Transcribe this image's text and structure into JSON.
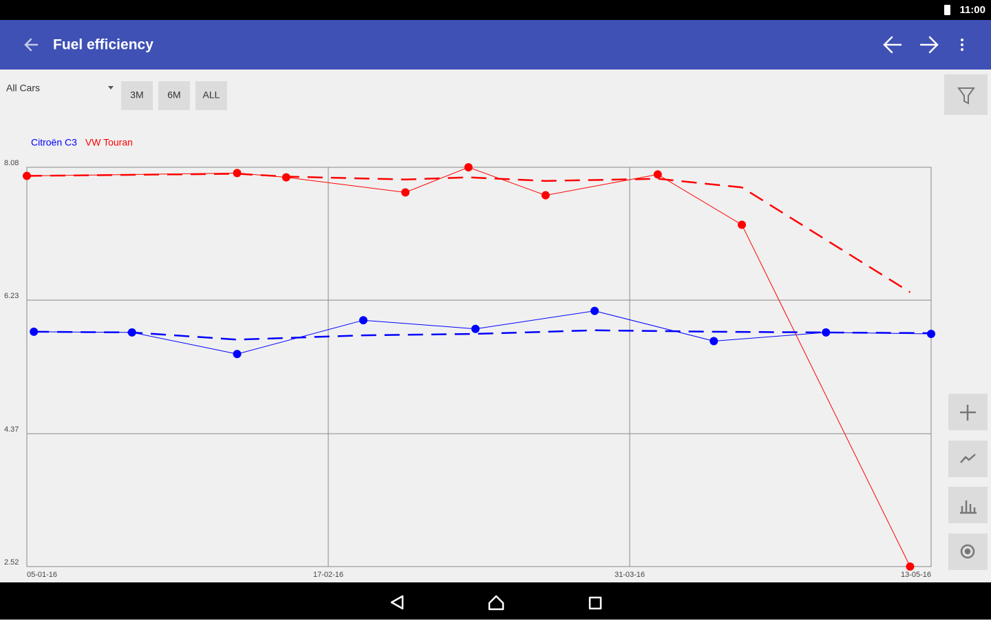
{
  "status_bar": {
    "time": "11:00"
  },
  "toolbar": {
    "title": "Fuel efficiency"
  },
  "filter": {
    "car": "All Cars",
    "ranges": [
      "3M",
      "6M",
      "ALL"
    ]
  },
  "chart_data": {
    "type": "line",
    "xlim": [
      "05-01-16",
      "13-05-16"
    ],
    "xticks": [
      "05-01-16",
      "17-02-16",
      "31-03-16",
      "13-05-16"
    ],
    "ylim": [
      2.52,
      8.08
    ],
    "yticks": [
      2.52,
      4.37,
      6.23,
      8.08
    ],
    "grid": true,
    "legend": "top-left",
    "series": [
      {
        "name": "Citroën C3",
        "color": "#0000ff",
        "x": [
          "06-01-16",
          "20-01-16",
          "04-02-16",
          "22-02-16",
          "09-03-16",
          "26-03-16",
          "12-04-16",
          "28-04-16",
          "13-05-16"
        ],
        "values": [
          5.79,
          5.78,
          5.48,
          5.95,
          5.83,
          6.08,
          5.66,
          5.78,
          5.76
        ]
      },
      {
        "name": "VW Touran",
        "color": "#ff0000",
        "x": [
          "05-01-16",
          "04-02-16",
          "11-02-16",
          "28-02-16",
          "08-03-16",
          "19-03-16",
          "04-04-16",
          "16-04-16",
          "10-05-16"
        ],
        "values": [
          7.96,
          8.0,
          7.94,
          7.73,
          8.08,
          7.69,
          7.98,
          7.28,
          2.52
        ]
      },
      {
        "color": "#0000ff",
        "dashed": true,
        "x": [
          "06-01-16",
          "20-01-16",
          "04-02-16",
          "22-02-16",
          "09-03-16",
          "26-03-16",
          "12-04-16",
          "28-04-16",
          "13-05-16"
        ],
        "values": [
          5.79,
          5.78,
          5.68,
          5.74,
          5.76,
          5.81,
          5.79,
          5.78,
          5.77
        ]
      },
      {
        "color": "#ff0000",
        "dashed": true,
        "x": [
          "05-01-16",
          "04-02-16",
          "11-02-16",
          "28-02-16",
          "08-03-16",
          "19-03-16",
          "04-04-16",
          "16-04-16",
          "10-05-16"
        ],
        "values": [
          7.96,
          7.99,
          7.95,
          7.91,
          7.94,
          7.89,
          7.92,
          7.8,
          6.34
        ]
      }
    ]
  }
}
